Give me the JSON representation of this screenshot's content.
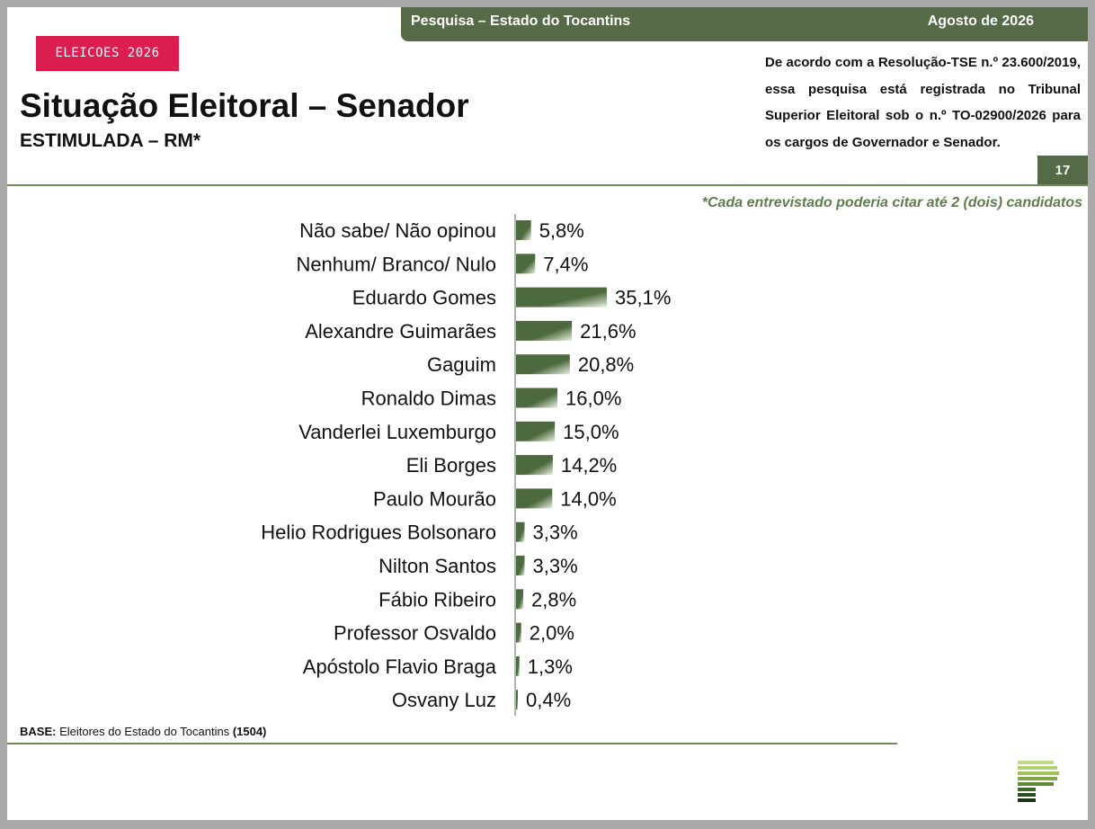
{
  "header": {
    "survey_label": "Pesquisa – Estado do Tocantins",
    "date_label": "Agosto de 2026",
    "tag": "ELEICOES 2026",
    "title": "Situação Eleitoral – Senador",
    "subtitle": "ESTIMULADA – RM*",
    "registration_note": "De acordo com a Resolução-TSE n.º 23.600/2019, essa pesquisa está registrada no Tribunal Superior Eleitoral sob o n.º TO-02900/2026 para os cargos de Governador e Senador.",
    "page_number": "17"
  },
  "footnote": "*Cada entrevistado poderia citar até 2 (dois) candidatos",
  "base": {
    "label": "BASE:",
    "text": "Eleitores do Estado do Tocantins",
    "count": "(1504)"
  },
  "colors": {
    "accent_green": "#556b48",
    "bar_dark": "#4d6a3e",
    "bar_light": "#e9f0e3",
    "tag_red": "#dc1d4f"
  },
  "logo": {
    "icon": "stacked-bars-logo-icon"
  },
  "chart_data": {
    "type": "bar",
    "orientation": "horizontal",
    "categories": [
      "Não sabe/ Não opinou",
      "Nenhum/ Branco/ Nulo",
      "Eduardo Gomes",
      "Alexandre Guimarães",
      "Gaguim",
      "Ronaldo Dimas",
      "Vanderlei Luxemburgo",
      "Eli Borges",
      "Paulo Mourão",
      "Helio Rodrigues Bolsonaro",
      "Nilton Santos",
      "Fábio Ribeiro",
      "Professor Osvaldo",
      "Apóstolo Flavio Braga",
      "Osvany Luz"
    ],
    "values": [
      5.8,
      7.4,
      35.1,
      21.6,
      20.8,
      16.0,
      15.0,
      14.2,
      14.0,
      3.3,
      3.3,
      2.8,
      2.0,
      1.3,
      0.4
    ],
    "value_labels": [
      "5,8%",
      "7,4%",
      "35,1%",
      "21,6%",
      "20,8%",
      "16,0%",
      "15,0%",
      "14,2%",
      "14,0%",
      "3,3%",
      "3,3%",
      "2,8%",
      "2,0%",
      "1,3%",
      "0,4%"
    ],
    "unit": "%",
    "xlim": [
      0,
      35.1
    ],
    "grid": false,
    "legend": "none"
  }
}
